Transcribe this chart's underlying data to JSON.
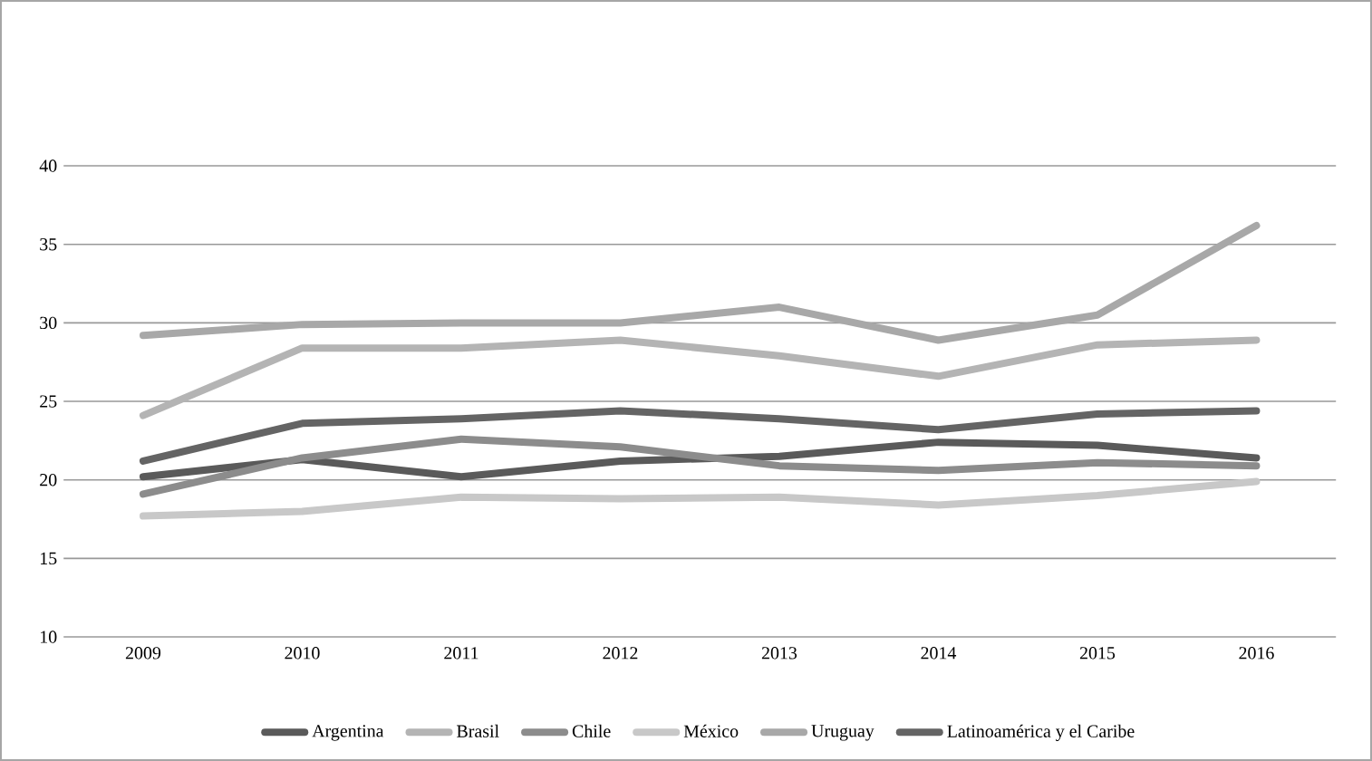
{
  "chart_data": {
    "type": "line",
    "categories": [
      "2009",
      "2010",
      "2011",
      "2012",
      "2013",
      "2014",
      "2015",
      "2016"
    ],
    "series": [
      {
        "name": "Argentina",
        "color": "#5a5a5a",
        "values": [
          20.2,
          21.3,
          20.2,
          21.2,
          21.5,
          22.4,
          22.2,
          21.4
        ]
      },
      {
        "name": "Brasil",
        "color": "#b4b4b4",
        "values": [
          24.1,
          28.4,
          28.4,
          28.9,
          27.9,
          26.6,
          28.6,
          28.9
        ]
      },
      {
        "name": "Chile",
        "color": "#8c8c8c",
        "values": [
          19.1,
          21.4,
          22.6,
          22.1,
          20.9,
          20.6,
          21.1,
          20.9
        ]
      },
      {
        "name": "México",
        "color": "#c8c8c8",
        "values": [
          17.7,
          18.0,
          18.9,
          18.8,
          18.9,
          18.4,
          19.0,
          19.9
        ]
      },
      {
        "name": "Uruguay",
        "color": "#a8a8a8",
        "values": [
          29.2,
          29.9,
          30.0,
          30.0,
          31.0,
          28.9,
          30.5,
          36.2
        ]
      },
      {
        "name": "Latinoamérica y el Caribe",
        "color": "#646464",
        "values": [
          21.2,
          23.6,
          23.9,
          24.4,
          23.9,
          23.2,
          24.2,
          24.4
        ]
      }
    ],
    "ylim": [
      10,
      40
    ],
    "yticks": [
      10,
      15,
      20,
      25,
      30,
      35,
      40
    ],
    "grid": "y",
    "legend": "bottom",
    "marker": "none",
    "line_style": "solid"
  }
}
